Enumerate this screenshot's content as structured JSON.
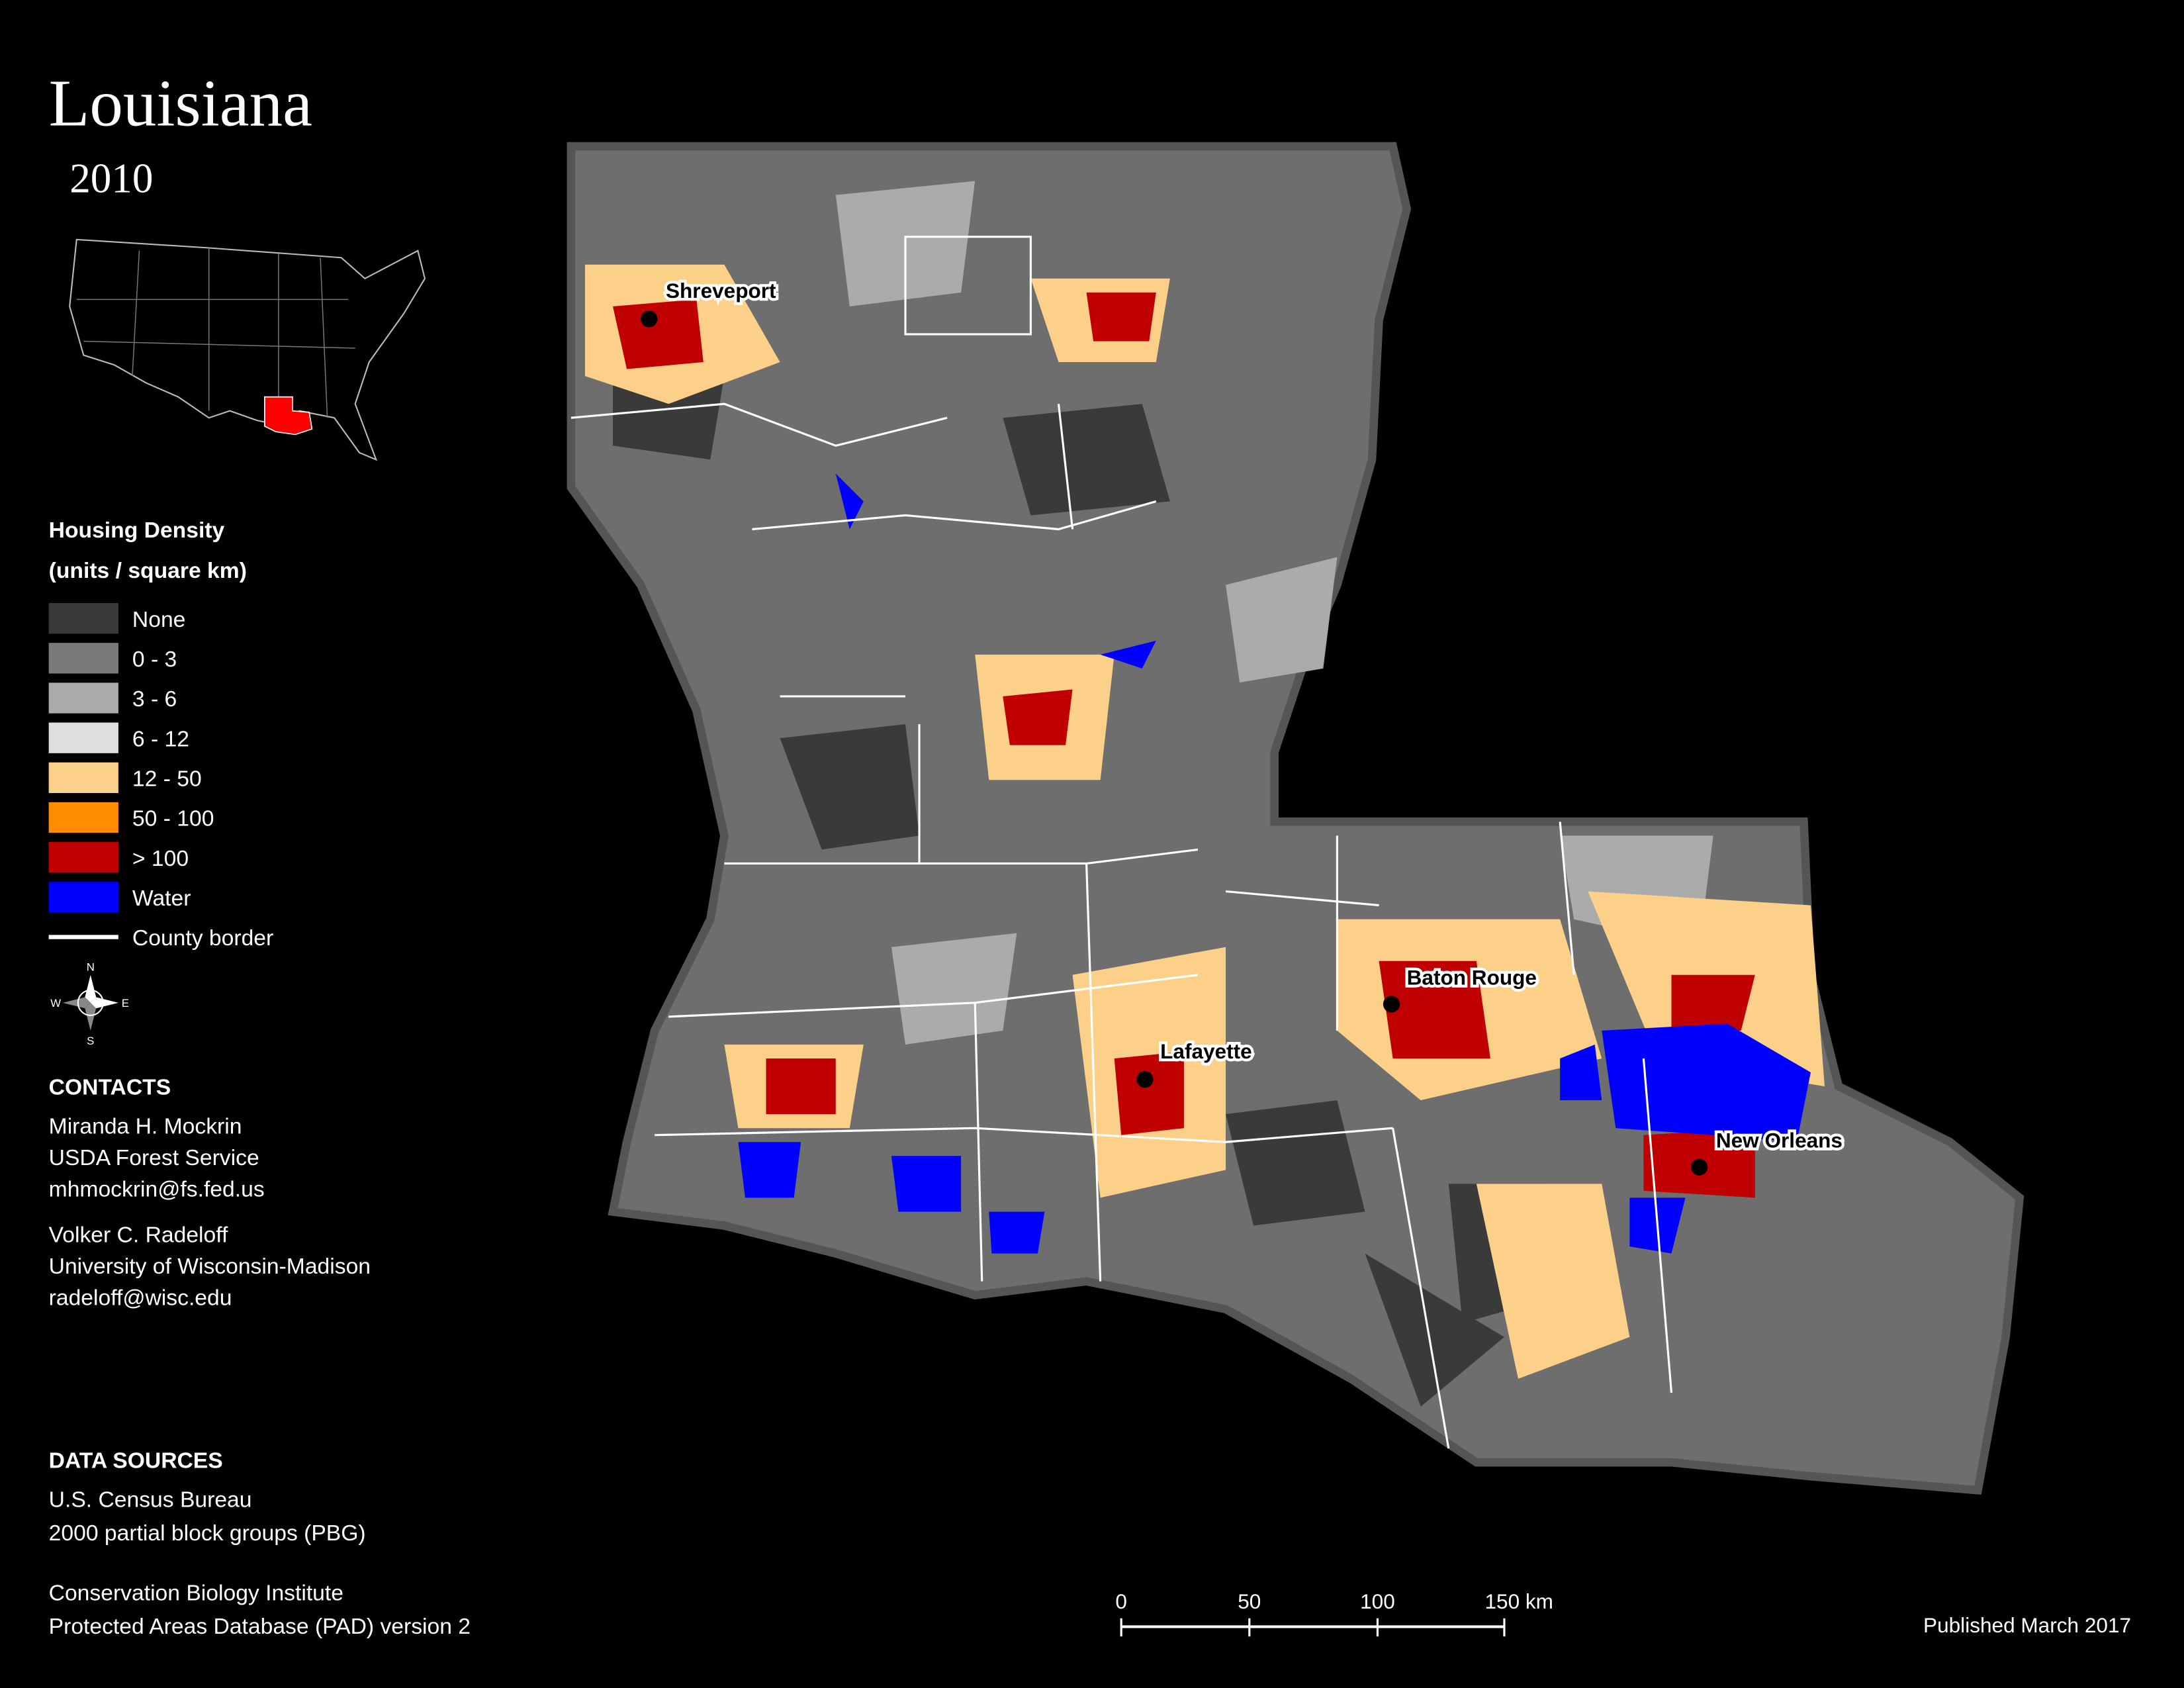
{
  "header": {
    "title": "Louisiana",
    "year": "2010"
  },
  "legend": {
    "title": "Housing Density",
    "subtitle": "(units / square km)",
    "items": [
      {
        "label": "None",
        "color": "#3a3a3a"
      },
      {
        "label": "0 - 3",
        "color": "#7a7a7a"
      },
      {
        "label": "3 - 6",
        "color": "#ababab"
      },
      {
        "label": "6 - 12",
        "color": "#dedede"
      },
      {
        "label": "12 - 50",
        "color": "#fdd08a"
      },
      {
        "label": "50 - 100",
        "color": "#ff8c00"
      },
      {
        "label": "> 100",
        "color": "#c00000"
      },
      {
        "label": "Water",
        "color": "#0000ff"
      },
      {
        "label": "County border",
        "color": "#ffffff",
        "style": "line"
      }
    ]
  },
  "compass": {
    "labels": [
      "N",
      "E",
      "S",
      "W"
    ]
  },
  "cities": [
    {
      "name": "Shreveport"
    },
    {
      "name": "Baton Rouge"
    },
    {
      "name": "Lafayette"
    },
    {
      "name": "New Orleans"
    }
  ],
  "contacts": {
    "heading": "CONTACTS",
    "people": [
      [
        "Miranda H. Mockrin",
        "USDA Forest Service",
        "mhmockrin@fs.fed.us"
      ],
      [
        "Volker C. Radeloff",
        "University of Wisconsin-Madison",
        "radeloff@wisc.edu"
      ]
    ]
  },
  "data_sources": {
    "heading": "DATA SOURCES",
    "groups": [
      [
        "U.S. Census Bureau",
        "2000 partial block groups (PBG)"
      ],
      [
        "Conservation Biology Institute",
        "Protected Areas Database (PAD) version 2"
      ]
    ]
  },
  "scale_bar": {
    "labels": [
      "0",
      "50",
      "100",
      "150 km"
    ]
  },
  "footer": {
    "published": "Published March 2017"
  }
}
